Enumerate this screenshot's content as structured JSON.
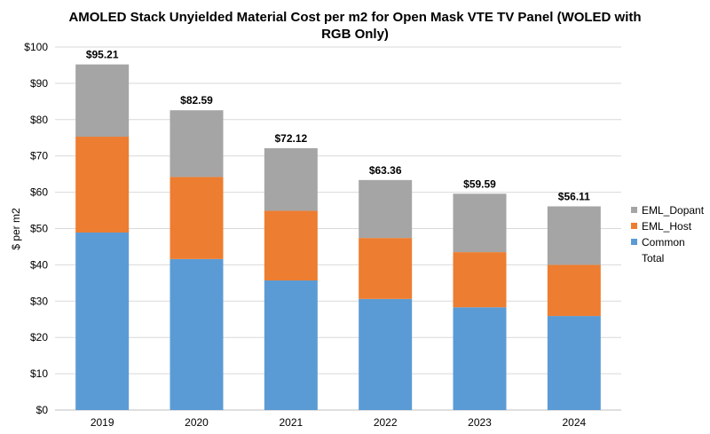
{
  "chart_data": {
    "type": "bar",
    "stacked": true,
    "title_lines": [
      "AMOLED Stack Unyielded Material Cost per m2 for Open Mask VTE TV Panel (WOLED with",
      "RGB Only)"
    ],
    "xlabel": "",
    "ylabel": "$ per m2",
    "ylim": [
      0,
      100
    ],
    "y_ticks": [
      0,
      10,
      20,
      30,
      40,
      50,
      60,
      70,
      80,
      90,
      100
    ],
    "y_tick_labels": [
      "$0",
      "$10",
      "$20",
      "$30",
      "$40",
      "$50",
      "$60",
      "$70",
      "$80",
      "$90",
      "$100"
    ],
    "grid": true,
    "categories": [
      "2019",
      "2020",
      "2021",
      "2022",
      "2023",
      "2024"
    ],
    "series": [
      {
        "name": "Common",
        "color": "#5b9bd5",
        "values": [
          48.9,
          41.6,
          35.7,
          30.6,
          28.3,
          25.9
        ]
      },
      {
        "name": "EML_Host",
        "color": "#ed7d31",
        "values": [
          26.4,
          22.6,
          19.2,
          16.8,
          15.2,
          14.1
        ]
      },
      {
        "name": "EML_Dopant",
        "color": "#a5a5a5",
        "values": [
          19.91,
          18.39,
          17.22,
          15.96,
          16.09,
          16.11
        ]
      }
    ],
    "totals": [
      95.21,
      82.59,
      72.12,
      63.36,
      59.59,
      56.11
    ],
    "total_labels": [
      "$95.21",
      "$82.59",
      "$72.12",
      "$63.36",
      "$59.59",
      "$56.11"
    ],
    "legend": {
      "position": "right",
      "entries": [
        {
          "name": "EML_Dopant",
          "color": "#a5a5a5"
        },
        {
          "name": "EML_Host",
          "color": "#ed7d31"
        },
        {
          "name": "Common",
          "color": "#5b9bd5"
        },
        {
          "name": "Total",
          "color": null
        }
      ]
    }
  }
}
